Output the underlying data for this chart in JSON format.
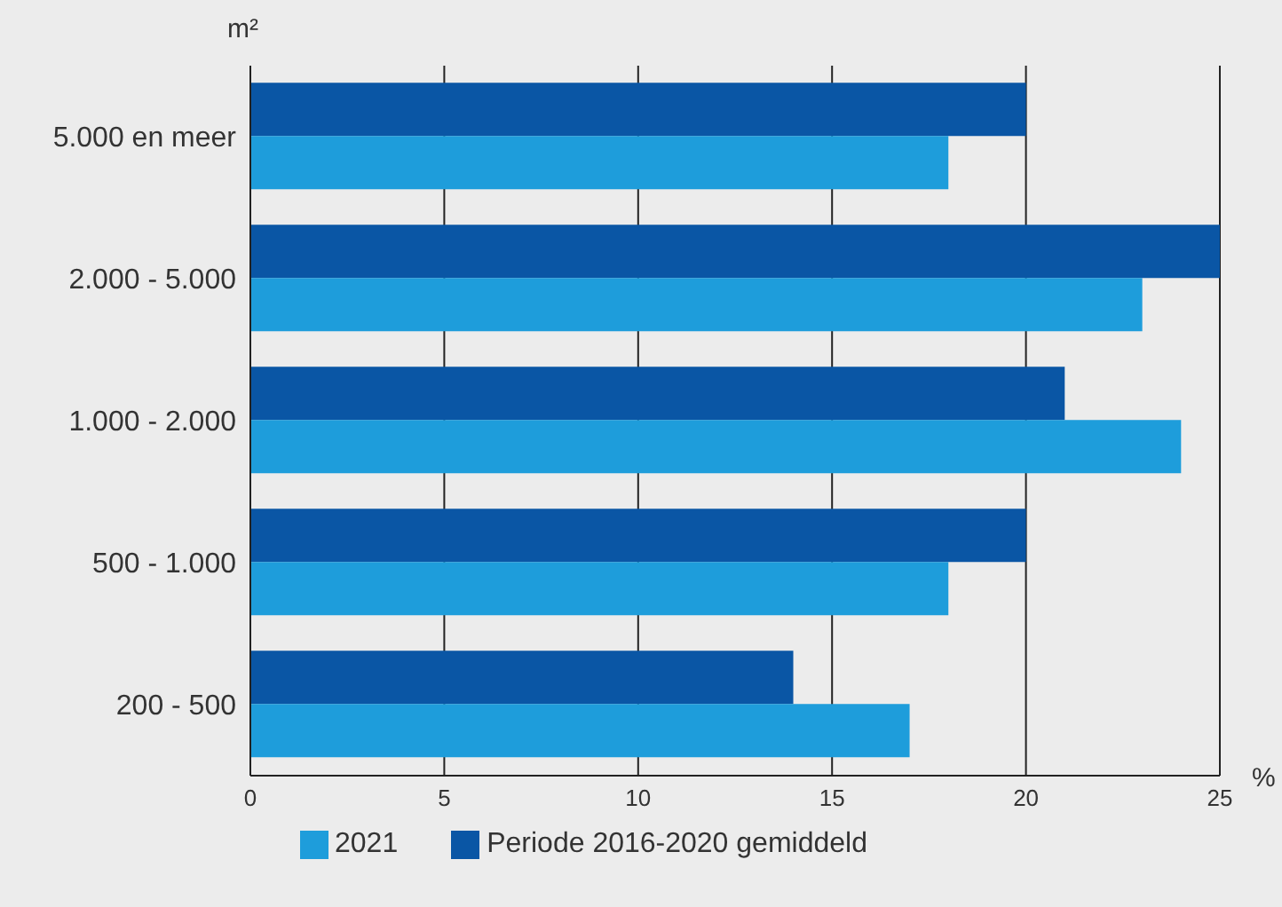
{
  "chart_data": {
    "type": "bar",
    "orientation": "horizontal",
    "ylabel": "m²",
    "xlabel": "%",
    "categories": [
      "5.000 en meer",
      "2.000 - 5.000",
      "1.000 - 2.000",
      "500 - 1.000",
      "200 - 500"
    ],
    "series": [
      {
        "name": "Periode 2016-2020 gemiddeld",
        "color": "#0a56a5",
        "values": [
          20,
          25,
          21,
          20,
          14
        ]
      },
      {
        "name": "2021",
        "color": "#1e9ddb",
        "values": [
          18,
          23,
          24,
          18,
          17
        ]
      }
    ],
    "xlim": [
      0,
      25
    ],
    "xticks": [
      0,
      5,
      10,
      15,
      20,
      25
    ],
    "grid": "x",
    "legend": "bottom"
  }
}
